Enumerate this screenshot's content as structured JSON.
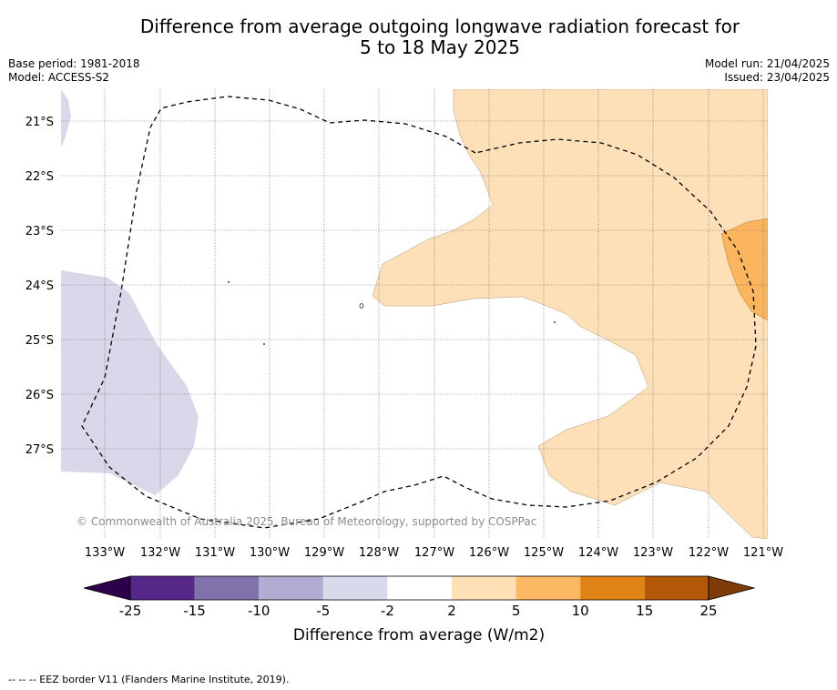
{
  "header": {
    "title_line1": "Difference from average outgoing longwave radiation forecast for",
    "title_line2": "5 to 18 May 2025",
    "base_period": "Base period: 1981-2018",
    "model": "Model: ACCESS-S2",
    "model_run": "Model run: 21/04/2025",
    "issued": "Issued: 23/04/2025"
  },
  "map": {
    "lon_labels": [
      "133°W",
      "132°W",
      "131°W",
      "130°W",
      "129°W",
      "128°W",
      "127°W",
      "126°W",
      "125°W",
      "124°W",
      "123°W",
      "122°W",
      "121°W"
    ],
    "lat_labels": [
      "21°S",
      "22°S",
      "23°S",
      "24°S",
      "25°S",
      "26°S",
      "27°S"
    ],
    "copyright": "© Commonwealth of Australia 2025, Bureau of Meteorology, supported by COSPPac",
    "fill_colors": {
      "neg_light": "#d8d8ea",
      "pos_light": "#fde0b8",
      "pos_mid": "#fbb55f",
      "boundary": "#000000"
    }
  },
  "colorbar": {
    "ticks": [
      "-25",
      "-15",
      "-10",
      "-5",
      "-2",
      "2",
      "5",
      "10",
      "15",
      "25"
    ],
    "colors": [
      "#2d004b",
      "#542788",
      "#8073ac",
      "#b2abd2",
      "#d8daeb",
      "#ffffff",
      "#fee0b6",
      "#fdb863",
      "#e08214",
      "#b35806",
      "#7f3b08"
    ],
    "label": "Difference from average (W/m2)"
  },
  "footer": {
    "legend": "--  --  -- EEZ border V11 (Flanders Marine Institute, 2019)."
  }
}
